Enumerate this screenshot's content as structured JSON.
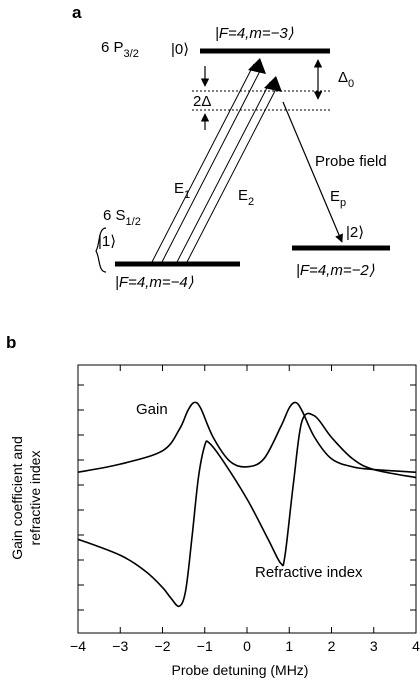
{
  "panel_a": {
    "label": "a",
    "state_excited": {
      "term": "6 P",
      "term_sub": "3/2"
    },
    "state_ground": {
      "term": "6 S",
      "term_sub": "1/2"
    },
    "level0": {
      "ket": "|0⟩",
      "quantum": "|F=4,m=−3⟩"
    },
    "level1": {
      "ket": "|1⟩",
      "quantum": "|F=4,m=−4⟩"
    },
    "level2": {
      "ket": "|2⟩",
      "quantum": "|F=4,m=−2⟩"
    },
    "delta0": {
      "base": "Δ",
      "sub": "0"
    },
    "two_delta": "2Δ",
    "probe_field": "Probe field",
    "E1": {
      "base": "E",
      "sub": "1"
    },
    "E2": {
      "base": "E",
      "sub": "2"
    },
    "Ep": {
      "base": "E",
      "sub": "p"
    }
  },
  "panel_b": {
    "label": "b",
    "ylabel_line1": "Gain coefficient and",
    "ylabel_line2": "refractive index",
    "xlabel": "Probe detuning (MHz)",
    "curve_labels": {
      "gain": "Gain",
      "refractive": "Refractive index"
    }
  },
  "chart_data": {
    "type": "line",
    "title": "",
    "xlabel": "Probe detuning (MHz)",
    "ylabel": "Gain coefficient and refractive index",
    "xlim": [
      -4,
      4
    ],
    "ylim": [
      0,
      1
    ],
    "x_ticks": [
      -4,
      -3,
      -2,
      -1,
      0,
      1,
      2,
      3,
      4
    ],
    "x_tick_labels": [
      "−4",
      "−3",
      "−2",
      "−1",
      "0",
      "1",
      "2",
      "3",
      "4"
    ],
    "series": [
      {
        "name": "Gain",
        "x": [
          -4,
          -3,
          -2,
          -1.6,
          -1.4,
          -1.25,
          -1.1,
          -0.8,
          -0.4,
          0,
          0.4,
          0.8,
          1.0,
          1.15,
          1.3,
          1.6,
          2.0,
          2.5,
          3,
          4
        ],
        "y": [
          0.6,
          0.63,
          0.68,
          0.76,
          0.83,
          0.86,
          0.84,
          0.73,
          0.64,
          0.62,
          0.65,
          0.77,
          0.84,
          0.86,
          0.83,
          0.73,
          0.65,
          0.62,
          0.61,
          0.6
        ]
      },
      {
        "name": "Refractive index",
        "x": [
          -4,
          -3,
          -2.4,
          -2,
          -1.8,
          -1.6,
          -1.45,
          -1.3,
          -1.15,
          -1.0,
          -0.9,
          -0.6,
          0,
          0.5,
          0.8,
          0.9,
          1.1,
          1.3,
          1.6,
          2.0,
          2.5,
          3,
          4
        ],
        "y": [
          0.35,
          0.29,
          0.23,
          0.17,
          0.13,
          0.1,
          0.16,
          0.36,
          0.58,
          0.7,
          0.71,
          0.65,
          0.5,
          0.35,
          0.26,
          0.29,
          0.56,
          0.79,
          0.81,
          0.73,
          0.65,
          0.61,
          0.58
        ]
      }
    ]
  }
}
